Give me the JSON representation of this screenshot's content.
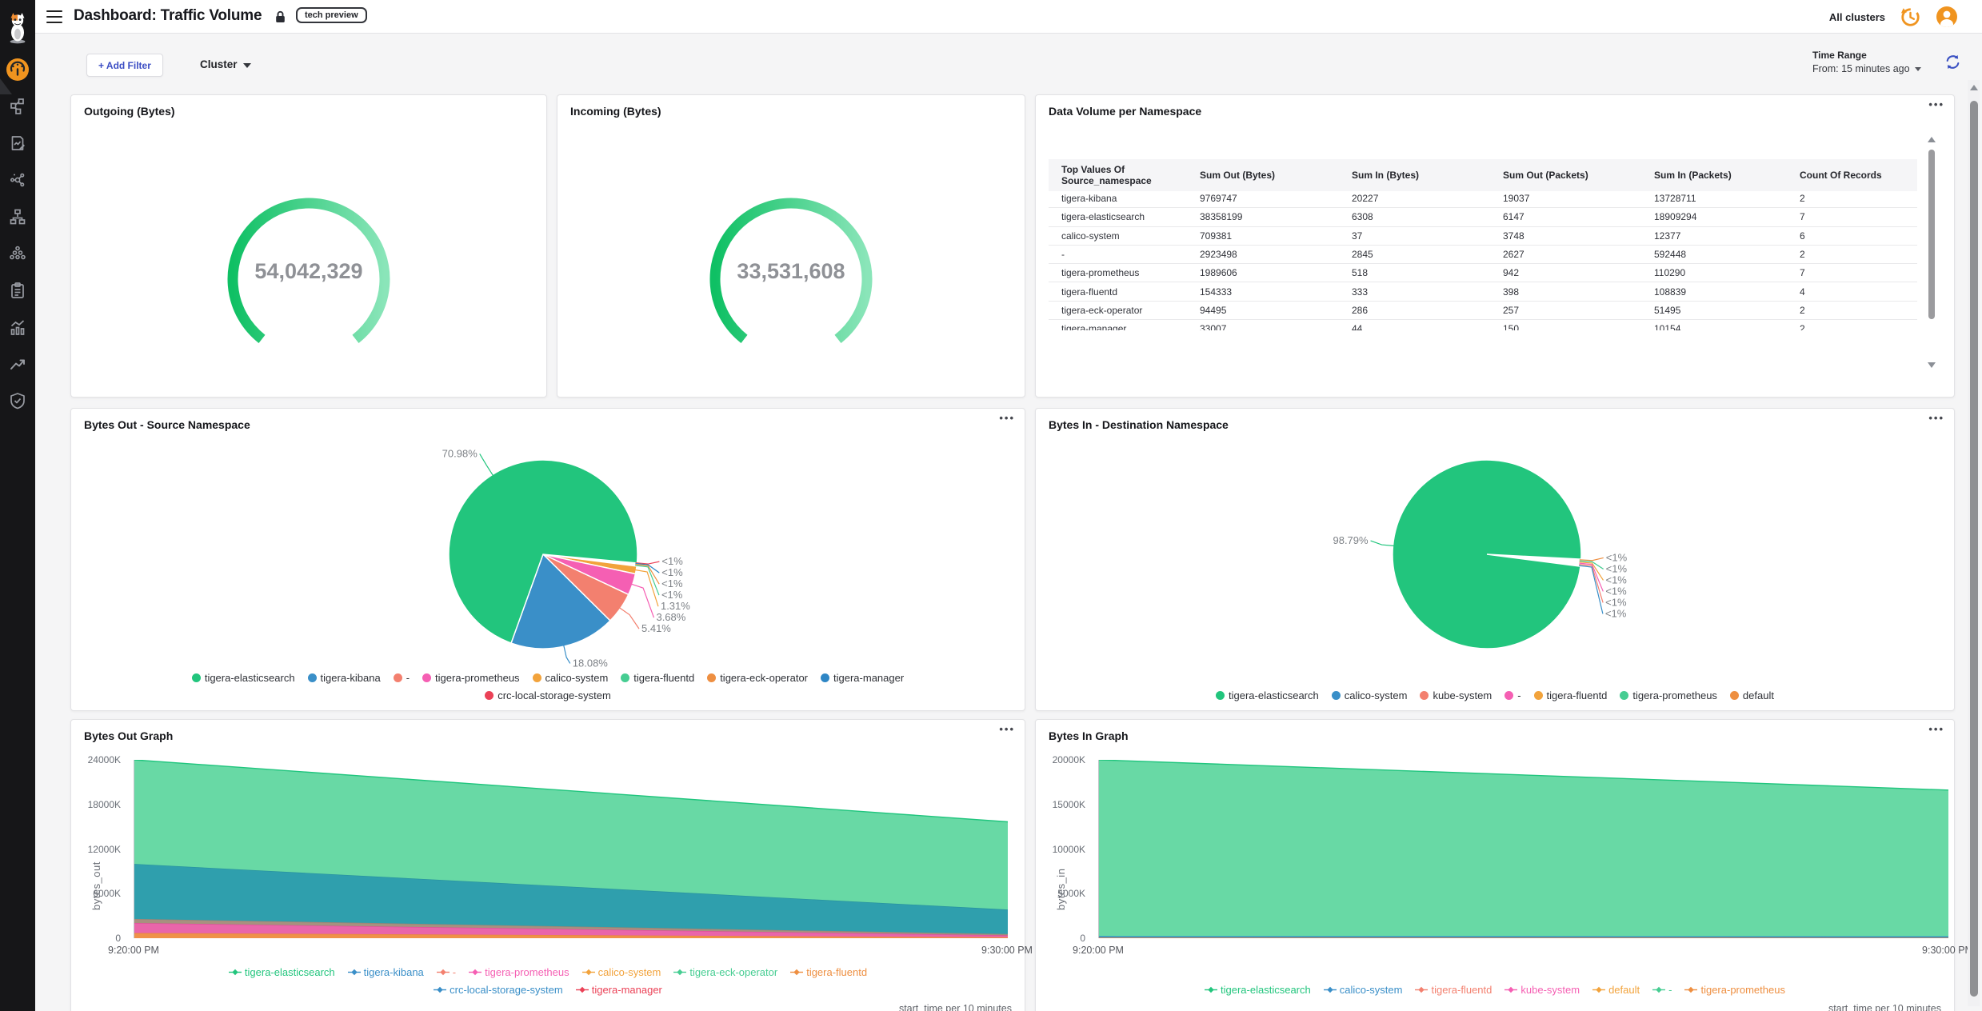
{
  "header": {
    "title": "Dashboard: Traffic Volume",
    "badge": "tech preview",
    "clusters_label": "All clusters"
  },
  "toolbar": {
    "add_filter": "+ Add Filter",
    "cluster_dropdown": "Cluster",
    "time_range_label": "Time Range",
    "time_range_value": "From: 15 minutes ago"
  },
  "ui": {
    "panel_menu": "•••"
  },
  "sidebar": {
    "active_color": "#f0941f",
    "items": [
      {
        "icon": "calico-cat-logo"
      },
      {
        "icon": "dashboard-gauge-icon",
        "active": true
      },
      {
        "icon": "network-topology-icon"
      },
      {
        "icon": "policy-document-icon"
      },
      {
        "icon": "service-graph-icon"
      },
      {
        "icon": "network-sitemap-icon"
      },
      {
        "icon": "workloads-cluster-icon"
      },
      {
        "icon": "compliance-clipboard-icon"
      },
      {
        "icon": "activity-chart-icon"
      },
      {
        "icon": "trend-arrow-icon"
      },
      {
        "icon": "security-shield-icon"
      }
    ]
  },
  "chart_data": {
    "outgoing_gauge": {
      "type": "gauge",
      "title": "Outgoing (Bytes)",
      "value": 54042329,
      "display": "54,042,329",
      "arc_colors": [
        "#0fc064",
        "#8ae5b9"
      ]
    },
    "incoming_gauge": {
      "type": "gauge",
      "title": "Incoming (Bytes)",
      "value": 33531608,
      "display": "33,531,608",
      "arc_colors": [
        "#0fc064",
        "#8ae5b9"
      ]
    },
    "namespace_table": {
      "type": "table",
      "title": "Data Volume per Namespace",
      "columns": [
        "Top Values Of Source_namespace",
        "Sum Out (Bytes)",
        "Sum In (Bytes)",
        "Sum Out (Packets)",
        "Sum In (Packets)",
        "Count Of Records"
      ],
      "rows": [
        [
          "tigera-kibana",
          9769747,
          20227,
          19037,
          13728711,
          2
        ],
        [
          "tigera-elasticsearch",
          38358199,
          6308,
          6147,
          18909294,
          7
        ],
        [
          "calico-system",
          709381,
          37,
          3748,
          12377,
          6
        ],
        [
          "-",
          2923498,
          2845,
          2627,
          592448,
          2
        ],
        [
          "tigera-prometheus",
          1989606,
          518,
          942,
          110290,
          7
        ],
        [
          "tigera-fluentd",
          154333,
          333,
          398,
          108839,
          4
        ],
        [
          "tigera-eck-operator",
          94495,
          286,
          257,
          51495,
          2
        ],
        [
          "tigera-manager",
          33007,
          44,
          150,
          10154,
          2
        ]
      ]
    },
    "bytes_out_pie": {
      "type": "pie",
      "title": "Bytes Out - Source Namespace",
      "start_angle": 95,
      "slices": [
        {
          "label": "crc-local-storage-system",
          "pct": 0.13,
          "display": "<1%",
          "color": "#eb4257"
        },
        {
          "label": "tigera-manager",
          "pct": 0.13,
          "display": "<1%",
          "color": "#2e86c5"
        },
        {
          "label": "tigera-eck-operator",
          "pct": 0.14,
          "display": "<1%",
          "color": "#ee8f41"
        },
        {
          "label": "tigera-fluentd",
          "pct": 0.23,
          "display": "<1%",
          "color": "#46cd92"
        },
        {
          "label": "calico-system",
          "pct": 1.31,
          "display": "1.31%",
          "color": "#f2a33c"
        },
        {
          "label": "tigera-prometheus",
          "pct": 3.68,
          "display": "3.68%",
          "color": "#f55fb3"
        },
        {
          "label": "-",
          "pct": 5.41,
          "display": "5.41%",
          "color": "#f3806f"
        },
        {
          "label": "tigera-kibana",
          "pct": 18.08,
          "display": "18.08%",
          "color": "#3a8fc8"
        },
        {
          "label": "tigera-elasticsearch",
          "pct": 70.98,
          "display": "70.98%",
          "color": "#22c57d"
        }
      ],
      "legend": [
        [
          {
            "label": "tigera-elasticsearch",
            "color": "#22c57d"
          },
          {
            "label": "tigera-kibana",
            "color": "#3a8fc8"
          },
          {
            "label": "-",
            "color": "#f3806f"
          },
          {
            "label": "tigera-prometheus",
            "color": "#f55fb3"
          },
          {
            "label": "calico-system",
            "color": "#f2a33c"
          },
          {
            "label": "tigera-fluentd",
            "color": "#46cd92"
          },
          {
            "label": "tigera-eck-operator",
            "color": "#ee8f41"
          },
          {
            "label": "tigera-manager",
            "color": "#2e86c5"
          }
        ],
        [
          {
            "label": "crc-local-storage-system",
            "color": "#eb4257"
          }
        ]
      ]
    },
    "bytes_in_pie": {
      "type": "pie",
      "title": "Bytes In - Destination Namespace",
      "start_angle": 93,
      "slices": [
        {
          "label": "default",
          "pct": 0.2,
          "display": "<1%",
          "color": "#ee8f41"
        },
        {
          "label": "tigera-prometheus",
          "pct": 0.2,
          "display": "<1%",
          "color": "#46cd92"
        },
        {
          "label": "tigera-fluentd",
          "pct": 0.2,
          "display": "<1%",
          "color": "#f2a33c"
        },
        {
          "label": "-",
          "pct": 0.2,
          "display": "<1%",
          "color": "#f55fb3"
        },
        {
          "label": "kube-system",
          "pct": 0.21,
          "display": "<1%",
          "color": "#f3806f"
        },
        {
          "label": "calico-system",
          "pct": 0.2,
          "display": "<1%",
          "color": "#3a8fc8"
        },
        {
          "label": "tigera-elasticsearch",
          "pct": 98.79,
          "display": "98.79%",
          "color": "#22c57d"
        }
      ],
      "legend": [
        [
          {
            "label": "tigera-elasticsearch",
            "color": "#22c57d"
          },
          {
            "label": "calico-system",
            "color": "#3a8fc8"
          },
          {
            "label": "kube-system",
            "color": "#f3806f"
          },
          {
            "label": "-",
            "color": "#f55fb3"
          },
          {
            "label": "tigera-fluentd",
            "color": "#f2a33c"
          },
          {
            "label": "tigera-prometheus",
            "color": "#46cd92"
          },
          {
            "label": "default",
            "color": "#ee8f41"
          }
        ]
      ]
    },
    "bytes_out_graph": {
      "type": "area",
      "stacked": true,
      "title": "Bytes Out Graph",
      "ylabel": "bytes_out",
      "unit": "K",
      "ymax": 24000,
      "yticks": [
        "0",
        "6000K",
        "12000K",
        "18000K",
        "24000K"
      ],
      "x_labels": [
        "9:20:00 PM",
        "9:30:00 PM"
      ],
      "footer": "start_time per 10 minutes",
      "series": [
        {
          "name": "calico-system",
          "fill": "#ef9149",
          "line": "#e9873c",
          "values": [
            700,
            130
          ]
        },
        {
          "name": "tigera-prometheus",
          "fill": "#e965aa",
          "line": "#e04e9b",
          "values": [
            1350,
            260
          ]
        },
        {
          "name": "-",
          "fill": "#a8907f",
          "line": "#9a8274",
          "values": [
            550,
            170
          ]
        },
        {
          "name": "tigera-kibana",
          "fill": "#2f9fad",
          "line": "#28929f",
          "values": [
            7400,
            3300
          ]
        },
        {
          "name": "tigera-elasticsearch",
          "fill": "#68d9a5",
          "line": "#1fc57d",
          "values": [
            14000,
            11800
          ]
        }
      ],
      "legend": [
        [
          {
            "label": "tigera-elasticsearch",
            "color": "#22c57d"
          },
          {
            "label": "tigera-kibana",
            "color": "#3a8fc8"
          },
          {
            "label": "-",
            "color": "#f3806f"
          },
          {
            "label": "tigera-prometheus",
            "color": "#f55fb3"
          },
          {
            "label": "calico-system",
            "color": "#f2a33c"
          },
          {
            "label": "tigera-eck-operator",
            "color": "#46cd92"
          },
          {
            "label": "tigera-fluentd",
            "color": "#ee8f41"
          }
        ],
        [
          {
            "label": "crc-local-storage-system",
            "color": "#3a8fc8"
          },
          {
            "label": "tigera-manager",
            "color": "#eb4257"
          }
        ]
      ]
    },
    "bytes_in_graph": {
      "type": "area",
      "stacked": true,
      "title": "Bytes In Graph",
      "ylabel": "bytes_in",
      "unit": "K",
      "ymax": 20000,
      "yticks": [
        "0",
        "5000K",
        "10000K",
        "15000K",
        "20000K"
      ],
      "x_labels": [
        "9:20:00 PM",
        "9:30:00 PM"
      ],
      "footer": "start_time per 10 minutes",
      "series": [
        {
          "name": "tigera-prometheus",
          "fill": "#ef9149",
          "line": "#e9873c",
          "values": [
            70,
            60
          ]
        },
        {
          "name": "calico-system",
          "fill": "#3a8fc8",
          "line": "#2e86c5",
          "values": [
            160,
            150
          ]
        },
        {
          "name": "tigera-elasticsearch",
          "fill": "#68d9a5",
          "line": "#1fc57d",
          "values": [
            19770,
            16400
          ]
        }
      ],
      "legend": [
        [
          {
            "label": "tigera-elasticsearch",
            "color": "#22c57d"
          },
          {
            "label": "calico-system",
            "color": "#3a8fc8"
          },
          {
            "label": "tigera-fluentd",
            "color": "#f3806f"
          },
          {
            "label": "kube-system",
            "color": "#f55fb3"
          },
          {
            "label": "default",
            "color": "#f2a33c"
          },
          {
            "label": "-",
            "color": "#46cd92"
          },
          {
            "label": "tigera-prometheus",
            "color": "#ee8f41"
          }
        ]
      ]
    }
  }
}
